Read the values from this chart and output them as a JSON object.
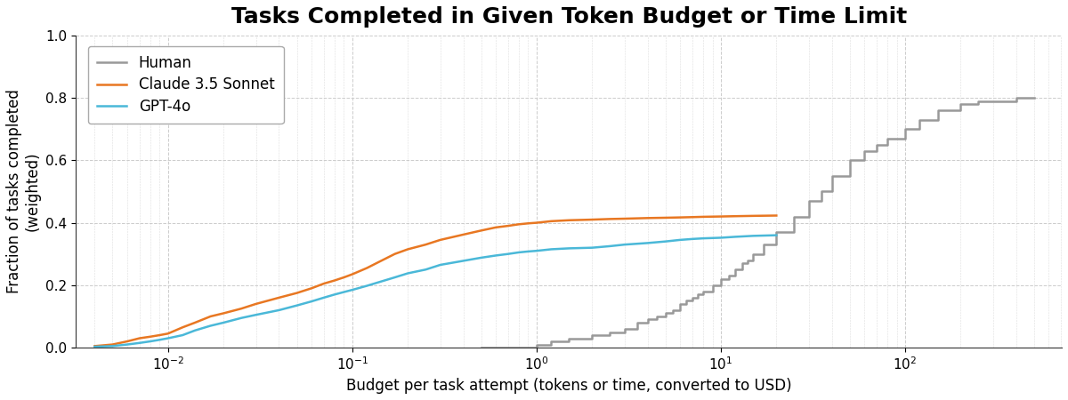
{
  "title": "Tasks Completed in Given Token Budget or Time Limit",
  "xlabel": "Budget per task attempt (tokens or time, converted to USD)",
  "ylabel": "Fraction of tasks completed\n(weighted)",
  "ylim": [
    0.0,
    1.0
  ],
  "background_color": "#ffffff",
  "grid_color": "#cccccc",
  "title_fontsize": 18,
  "label_fontsize": 12,
  "tick_fontsize": 11,
  "legend_fontsize": 12,
  "series": [
    {
      "label": "Human",
      "color": "#999999",
      "linewidth": 1.8,
      "drawstyle": "steps-post",
      "x": [
        0.5,
        0.8,
        1.0,
        1.2,
        1.5,
        2.0,
        2.5,
        3.0,
        3.5,
        4.0,
        4.5,
        5.0,
        5.5,
        6.0,
        6.5,
        7.0,
        7.5,
        8.0,
        9.0,
        10.0,
        11.0,
        12.0,
        13.0,
        14.0,
        15.0,
        17.0,
        20.0,
        25.0,
        30.0,
        35.0,
        40.0,
        50.0,
        60.0,
        70.0,
        80.0,
        100.0,
        120.0,
        150.0,
        200.0,
        250.0,
        300.0,
        400.0,
        500.0
      ],
      "y": [
        0.0,
        0.0,
        0.01,
        0.02,
        0.03,
        0.04,
        0.05,
        0.06,
        0.08,
        0.09,
        0.1,
        0.11,
        0.12,
        0.14,
        0.15,
        0.16,
        0.17,
        0.18,
        0.2,
        0.22,
        0.23,
        0.25,
        0.27,
        0.28,
        0.3,
        0.33,
        0.37,
        0.42,
        0.47,
        0.5,
        0.55,
        0.6,
        0.63,
        0.65,
        0.67,
        0.7,
        0.73,
        0.76,
        0.78,
        0.79,
        0.79,
        0.8,
        0.8
      ]
    },
    {
      "label": "Claude 3.5 Sonnet",
      "color": "#e87722",
      "linewidth": 1.8,
      "drawstyle": "default",
      "x": [
        0.004,
        0.005,
        0.006,
        0.007,
        0.008,
        0.009,
        0.01,
        0.012,
        0.014,
        0.017,
        0.02,
        0.025,
        0.03,
        0.04,
        0.05,
        0.06,
        0.07,
        0.08,
        0.09,
        0.1,
        0.12,
        0.14,
        0.17,
        0.2,
        0.25,
        0.3,
        0.4,
        0.5,
        0.6,
        0.7,
        0.8,
        0.9,
        1.0,
        1.2,
        1.5,
        2.0,
        2.5,
        3.0,
        4.0,
        5.0,
        6.0,
        7.0,
        8.0,
        10.0,
        12.0,
        15.0,
        20.0
      ],
      "y": [
        0.005,
        0.01,
        0.02,
        0.03,
        0.035,
        0.04,
        0.045,
        0.065,
        0.08,
        0.1,
        0.11,
        0.125,
        0.14,
        0.16,
        0.175,
        0.19,
        0.205,
        0.215,
        0.225,
        0.235,
        0.255,
        0.275,
        0.3,
        0.315,
        0.33,
        0.345,
        0.362,
        0.375,
        0.385,
        0.39,
        0.395,
        0.398,
        0.4,
        0.405,
        0.408,
        0.41,
        0.412,
        0.413,
        0.415,
        0.416,
        0.417,
        0.418,
        0.419,
        0.42,
        0.421,
        0.422,
        0.423
      ]
    },
    {
      "label": "GPT-4o",
      "color": "#4ab8d8",
      "linewidth": 1.8,
      "drawstyle": "default",
      "x": [
        0.004,
        0.005,
        0.006,
        0.007,
        0.008,
        0.009,
        0.01,
        0.012,
        0.014,
        0.017,
        0.02,
        0.025,
        0.03,
        0.04,
        0.05,
        0.06,
        0.07,
        0.08,
        0.09,
        0.1,
        0.12,
        0.14,
        0.17,
        0.2,
        0.25,
        0.3,
        0.4,
        0.5,
        0.6,
        0.7,
        0.8,
        0.9,
        1.0,
        1.2,
        1.5,
        2.0,
        2.5,
        3.0,
        4.0,
        5.0,
        6.0,
        7.0,
        8.0,
        10.0,
        12.0,
        15.0,
        20.0
      ],
      "y": [
        0.003,
        0.005,
        0.01,
        0.015,
        0.02,
        0.025,
        0.03,
        0.04,
        0.055,
        0.07,
        0.08,
        0.095,
        0.105,
        0.12,
        0.135,
        0.148,
        0.16,
        0.17,
        0.178,
        0.185,
        0.198,
        0.21,
        0.225,
        0.238,
        0.25,
        0.265,
        0.278,
        0.288,
        0.295,
        0.3,
        0.305,
        0.308,
        0.31,
        0.315,
        0.318,
        0.32,
        0.325,
        0.33,
        0.335,
        0.34,
        0.345,
        0.348,
        0.35,
        0.352,
        0.355,
        0.358,
        0.36
      ]
    }
  ]
}
